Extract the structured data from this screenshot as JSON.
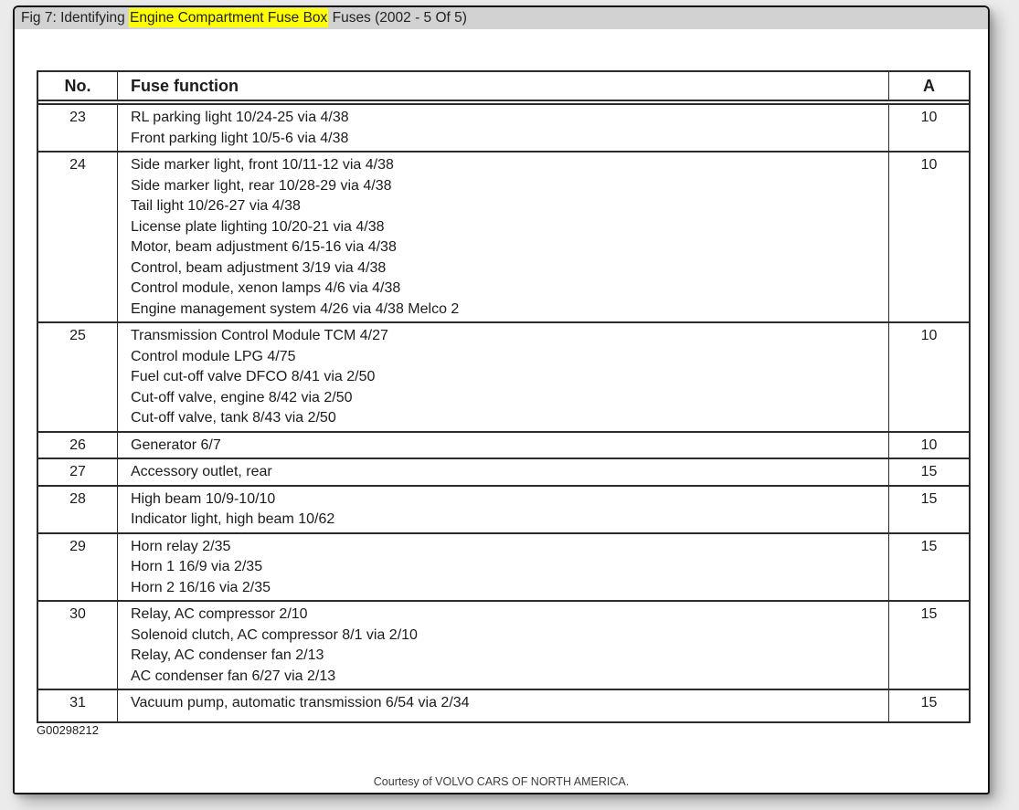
{
  "title": {
    "prefix": "Fig 7: Identifying ",
    "highlight": "Engine Compartment Fuse Box",
    "suffix": " Fuses (2002 - 5 Of 5)"
  },
  "colors": {
    "highlight_bg": "#ffff00",
    "titlebar_bg": "#d2d2d2",
    "frame_border": "#141414",
    "table_line": "#2b2b2b"
  },
  "table": {
    "headers": {
      "no": "No.",
      "function": "Fuse function",
      "amps": "A"
    },
    "rows": [
      {
        "no": "23",
        "functions": [
          "RL parking light 10/24-25 via 4/38",
          "Front parking light 10/5-6 via 4/38"
        ],
        "amps": "10"
      },
      {
        "no": "24",
        "functions": [
          "Side marker light, front 10/11-12 via 4/38",
          "Side marker light, rear 10/28-29 via 4/38",
          "Tail light 10/26-27 via 4/38",
          "License plate lighting 10/20-21 via 4/38",
          "Motor, beam adjustment 6/15-16 via 4/38",
          "Control, beam adjustment 3/19 via 4/38",
          "Control module, xenon lamps 4/6 via 4/38",
          "Engine management system 4/26 via 4/38 Melco 2"
        ],
        "amps": "10"
      },
      {
        "no": "25",
        "functions": [
          "Transmission Control Module TCM 4/27",
          "Control module LPG 4/75",
          "Fuel cut-off valve DFCO 8/41 via 2/50",
          "Cut-off valve, engine 8/42 via 2/50",
          "Cut-off valve, tank 8/43 via 2/50"
        ],
        "amps": "10"
      },
      {
        "no": "26",
        "functions": [
          "Generator 6/7"
        ],
        "amps": "10"
      },
      {
        "no": "27",
        "functions": [
          "Accessory outlet, rear"
        ],
        "amps": "15"
      },
      {
        "no": "28",
        "functions": [
          "High beam 10/9-10/10",
          "Indicator light, high beam 10/62"
        ],
        "amps": "15"
      },
      {
        "no": "29",
        "functions": [
          "Horn relay 2/35",
          "Horn 1 16/9 via 2/35",
          "Horn 2 16/16 via 2/35"
        ],
        "amps": "15"
      },
      {
        "no": "30",
        "functions": [
          "Relay, AC compressor 2/10",
          "Solenoid clutch, AC compressor 8/1 via 2/10",
          "Relay, AC condenser fan 2/13",
          "AC condenser fan 6/27 via 2/13"
        ],
        "amps": "15"
      },
      {
        "no": "31",
        "functions": [
          "Vacuum pump, automatic transmission 6/54 via 2/34"
        ],
        "amps": "15"
      }
    ]
  },
  "figure_id": "G00298212",
  "footer": "Courtesy of VOLVO CARS OF NORTH AMERICA."
}
